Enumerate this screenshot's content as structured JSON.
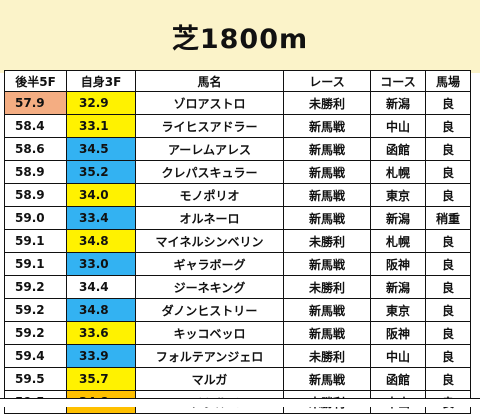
{
  "title": "芝1800m",
  "columns": [
    "後半5F",
    "自身3F",
    "馬名",
    "レース",
    "コース",
    "馬場"
  ],
  "rows": [
    {
      "last5f": "57.9",
      "last5f_color": "orange",
      "self3f": "32.9",
      "self3f_color": "yellow",
      "name": "ゾロアストロ",
      "race": "未勝利",
      "course": "新潟",
      "track": "良"
    },
    {
      "last5f": "58.4",
      "last5f_color": "none",
      "self3f": "33.1",
      "self3f_color": "yellow",
      "name": "ライヒスアドラー",
      "race": "新馬戦",
      "course": "中山",
      "track": "良"
    },
    {
      "last5f": "58.6",
      "last5f_color": "none",
      "self3f": "34.5",
      "self3f_color": "blue",
      "name": "アーレムアレス",
      "race": "新馬戦",
      "course": "函館",
      "track": "良"
    },
    {
      "last5f": "58.9",
      "last5f_color": "none",
      "self3f": "35.2",
      "self3f_color": "blue",
      "name": "クレパスキュラー",
      "race": "新馬戦",
      "course": "札幌",
      "track": "良"
    },
    {
      "last5f": "58.9",
      "last5f_color": "none",
      "self3f": "34.0",
      "self3f_color": "yellow",
      "name": "モノポリオ",
      "race": "新馬戦",
      "course": "東京",
      "track": "良"
    },
    {
      "last5f": "59.0",
      "last5f_color": "none",
      "self3f": "33.4",
      "self3f_color": "blue",
      "name": "オルネーロ",
      "race": "新馬戦",
      "course": "新潟",
      "track": "稍重"
    },
    {
      "last5f": "59.1",
      "last5f_color": "none",
      "self3f": "34.8",
      "self3f_color": "yellow",
      "name": "マイネルシンベリン",
      "race": "未勝利",
      "course": "札幌",
      "track": "良"
    },
    {
      "last5f": "59.1",
      "last5f_color": "none",
      "self3f": "33.0",
      "self3f_color": "blue",
      "name": "ギャラボーグ",
      "race": "新馬戦",
      "course": "阪神",
      "track": "良"
    },
    {
      "last5f": "59.2",
      "last5f_color": "none",
      "self3f": "34.4",
      "self3f_color": "none",
      "name": "ジーネキング",
      "race": "未勝利",
      "course": "新潟",
      "track": "良"
    },
    {
      "last5f": "59.2",
      "last5f_color": "none",
      "self3f": "34.8",
      "self3f_color": "blue",
      "name": "ダノンヒストリー",
      "race": "新馬戦",
      "course": "東京",
      "track": "良"
    },
    {
      "last5f": "59.2",
      "last5f_color": "none",
      "self3f": "33.6",
      "self3f_color": "yellow",
      "name": "キッコベッロ",
      "race": "新馬戦",
      "course": "阪神",
      "track": "良"
    },
    {
      "last5f": "59.4",
      "last5f_color": "none",
      "self3f": "33.9",
      "self3f_color": "blue",
      "name": "フォルテアンジェロ",
      "race": "未勝利",
      "course": "中山",
      "track": "良"
    },
    {
      "last5f": "59.5",
      "last5f_color": "none",
      "self3f": "35.7",
      "self3f_color": "yellow",
      "name": "マルガ",
      "race": "新馬戦",
      "course": "函館",
      "track": "良"
    },
    {
      "last5f": "59.5",
      "last5f_color": "none",
      "self3f": "34.8",
      "self3f_color": "gold",
      "name": "ユメシルベ",
      "race": "未勝利",
      "course": "中山",
      "track": "良"
    }
  ],
  "colors": {
    "header_bg": "#fbf3c9",
    "orange": "#f4ad82",
    "yellow": "#fff200",
    "blue": "#33b2f2",
    "gold": "#ffc000",
    "none": "#ffffff"
  }
}
